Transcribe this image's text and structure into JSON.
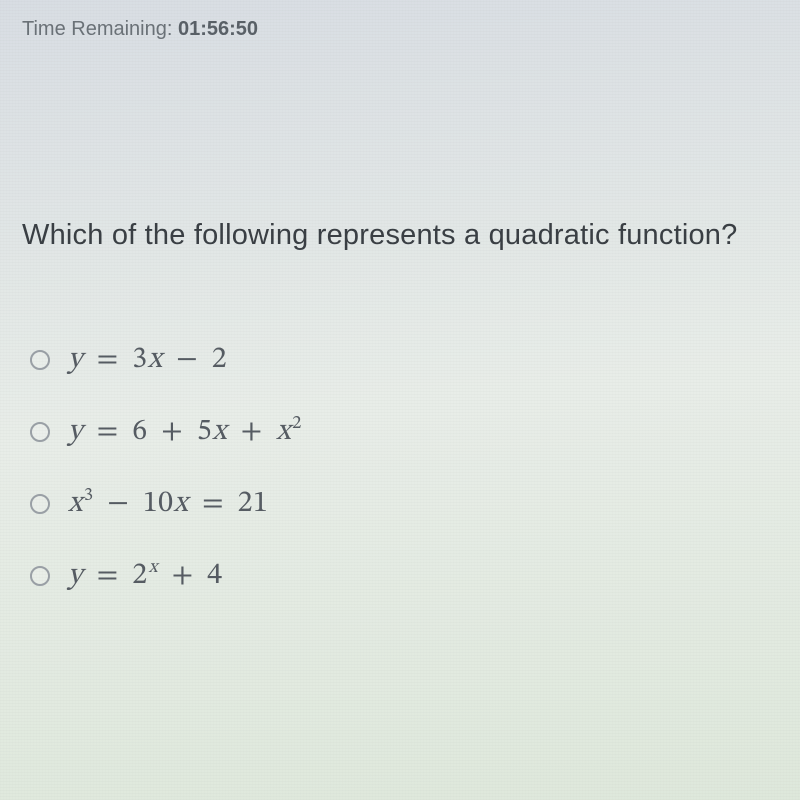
{
  "timer": {
    "label": "Time Remaining:",
    "value": "01:56:50"
  },
  "question": {
    "text": "Which of the following represents a quadratic function?"
  },
  "options": {
    "items": [
      {
        "lhs": "y",
        "eq": "=",
        "t1": "3",
        "t1v": "x",
        "op1": "−",
        "t2": "2"
      },
      {
        "lhs": "y",
        "eq": "=",
        "t1": "6",
        "op1": "+",
        "t2": "5",
        "t2v": "x",
        "op2": "+",
        "t3v": "x",
        "t3sup": "2"
      },
      {
        "lhsv": "x",
        "lhssup": "3",
        "op1": "−",
        "t1": "10",
        "t1v": "x",
        "eq": "=",
        "t2": "21"
      },
      {
        "lhs": "y",
        "eq": "=",
        "t1": "2",
        "t1supv": "x",
        "op1": "+",
        "t2": "4"
      }
    ]
  },
  "style": {
    "radio_border": "#9aa0a6",
    "text_color": "#565c63",
    "question_color": "#3a3f44"
  }
}
